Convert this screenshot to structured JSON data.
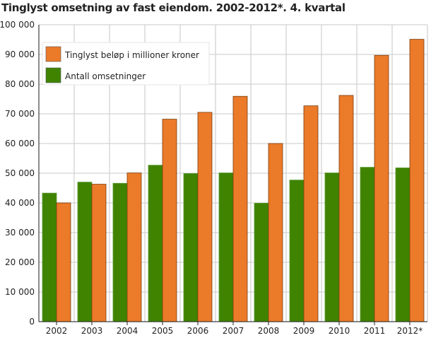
{
  "chart_data": {
    "type": "bar",
    "title": "Tinglyst omsetning av fast eiendom. 2002-2012*. 4. kvartal",
    "xlabel": "",
    "ylabel": "",
    "ylim": [
      0,
      100000
    ],
    "yticks": [
      0,
      10000,
      20000,
      30000,
      40000,
      50000,
      60000,
      70000,
      80000,
      90000,
      100000
    ],
    "ytick_labels": [
      "0",
      "10 000",
      "20 000",
      "30 000",
      "40 000",
      "50 000",
      "60 000",
      "70 000",
      "80 000",
      "90 000",
      "100 000"
    ],
    "categories": [
      "2002",
      "2003",
      "2004",
      "2005",
      "2006",
      "2007",
      "2008",
      "2009",
      "2010",
      "2011",
      "2012*"
    ],
    "grid": true,
    "legend_position": "top-left",
    "series": [
      {
        "name": "Antall omsetninger",
        "color": "#3f8300",
        "values": [
          43300,
          47000,
          46600,
          52700,
          49900,
          50100,
          39900,
          47700,
          50100,
          52000,
          51800
        ]
      },
      {
        "name": "Tinglyst beløp i millioner kroner",
        "color": "#eb7a29",
        "values": [
          40000,
          46300,
          50100,
          68200,
          70500,
          75900,
          60000,
          72700,
          76200,
          89700,
          95100
        ]
      }
    ]
  }
}
